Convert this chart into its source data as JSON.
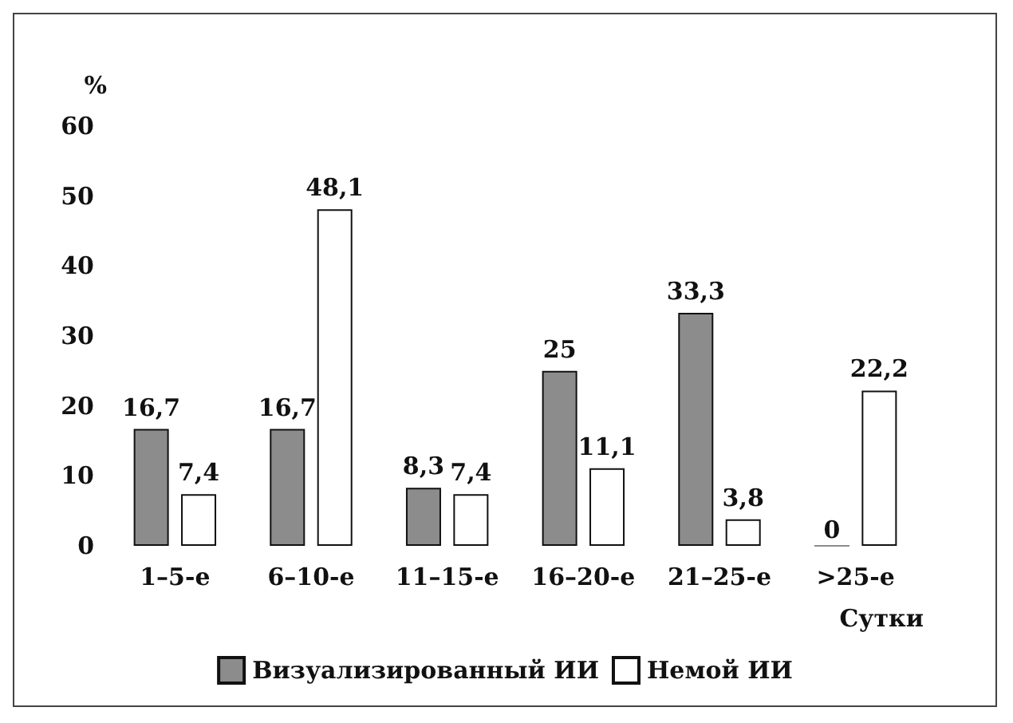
{
  "chart_data": {
    "type": "bar",
    "ylabel": "%",
    "xlabel": "Сутки",
    "categories": [
      "1–5-е",
      "6–10-е",
      "11–15-е",
      "16–20-е",
      "21–25-е",
      ">25-е"
    ],
    "series": [
      {
        "name": "Визуализированный ИИ",
        "color": "#8c8c8c",
        "values": [
          16.7,
          16.7,
          8.3,
          25,
          33.3,
          0
        ],
        "value_labels": [
          "16,7",
          "16,7",
          "8,3",
          "25",
          "33,3",
          "0"
        ]
      },
      {
        "name": "Немой ИИ",
        "color": "#ffffff",
        "values": [
          7.4,
          48.1,
          7.4,
          11.1,
          3.8,
          22.2
        ],
        "value_labels": [
          "7,4",
          "48,1",
          "7,4",
          "11,1",
          "3,8",
          "22,2"
        ]
      }
    ],
    "ylim": [
      0,
      60
    ],
    "yticks": [
      0,
      10,
      20,
      30,
      40,
      50,
      60
    ],
    "grid": false,
    "legend": "bottom"
  }
}
